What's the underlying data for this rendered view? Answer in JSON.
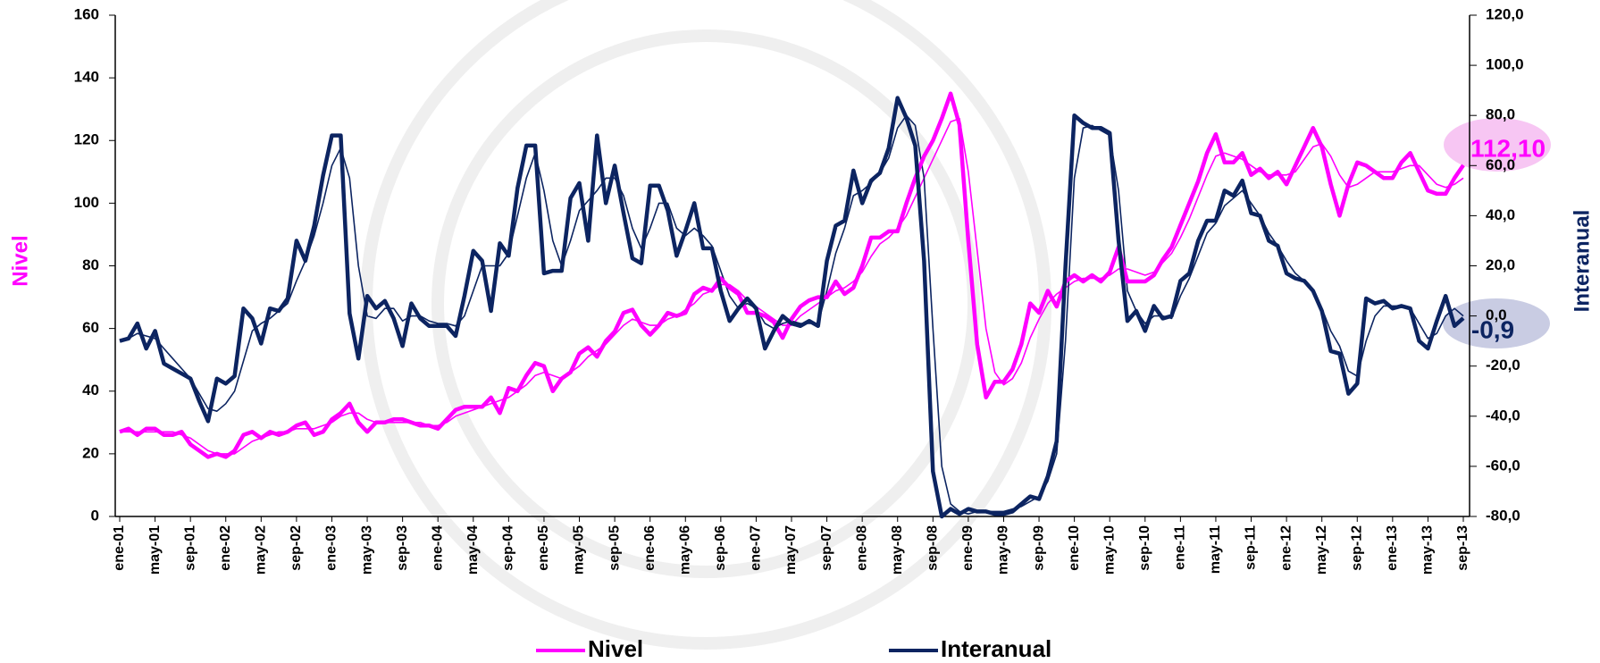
{
  "chart_data": {
    "type": "line",
    "y_label": "Nivel",
    "y2_label": "Interanual",
    "categories": [
      "ene-01",
      null,
      null,
      null,
      "may-01",
      null,
      null,
      null,
      "sep-01",
      null,
      null,
      null,
      "ene-02",
      null,
      null,
      null,
      "may-02",
      null,
      null,
      null,
      "sep-02",
      null,
      null,
      null,
      "ene-03",
      null,
      null,
      null,
      "may-03",
      null,
      null,
      null,
      "sep-03",
      null,
      null,
      null,
      "ene-04",
      null,
      null,
      null,
      "may-04",
      null,
      null,
      null,
      "sep-04",
      null,
      null,
      null,
      "ene-05",
      null,
      null,
      null,
      "may-05",
      null,
      null,
      null,
      "sep-05",
      null,
      null,
      null,
      "ene-06",
      null,
      null,
      null,
      "may-06",
      null,
      null,
      null,
      "sep-06",
      null,
      null,
      null,
      "ene-07",
      null,
      null,
      null,
      "may-07",
      null,
      null,
      null,
      "sep-07",
      null,
      null,
      null,
      "ene-08",
      null,
      null,
      null,
      "may-08",
      null,
      null,
      null,
      "sep-08",
      null,
      null,
      null,
      "ene-09",
      null,
      null,
      null,
      "may-09",
      null,
      null,
      null,
      "sep-09",
      null,
      null,
      null,
      "ene-10",
      null,
      null,
      null,
      "may-10",
      null,
      null,
      null,
      "sep-10",
      null,
      null,
      null,
      "ene-11",
      null,
      null,
      null,
      "may-11",
      null,
      null,
      null,
      "sep-11",
      null,
      null,
      null,
      "ene-12",
      null,
      null,
      null,
      "may-12",
      null,
      null,
      null,
      "sep-12",
      null,
      null,
      null,
      "ene-13",
      null,
      null,
      null,
      "may-13",
      null,
      null,
      null,
      "sep-13"
    ],
    "series": [
      {
        "color": "#ff00ff",
        "values": [
          27,
          27,
          27,
          27,
          27,
          27,
          27,
          26,
          25,
          23,
          21,
          20,
          20,
          20,
          22,
          24,
          25,
          26,
          27,
          27,
          28,
          28,
          28,
          29,
          30,
          32,
          33,
          33,
          31,
          30,
          30,
          30,
          30,
          30,
          30,
          29,
          29,
          30,
          32,
          33,
          34,
          35,
          36,
          37,
          38,
          40,
          42,
          45,
          46,
          45,
          44,
          46,
          48,
          51,
          53,
          55,
          58,
          61,
          63,
          62,
          61,
          61,
          63,
          64,
          66,
          68,
          71,
          72,
          74,
          74,
          72,
          69,
          67,
          65,
          63,
          61,
          61,
          64,
          66,
          68,
          70,
          72,
          73,
          75,
          78,
          83,
          87,
          89,
          92,
          96,
          102,
          108,
          114,
          120,
          126,
          127,
          110,
          85,
          60,
          46,
          42,
          44,
          49,
          57,
          63,
          68,
          71,
          73,
          75,
          76,
          76,
          76,
          77,
          79,
          79,
          78,
          77,
          78,
          81,
          84,
          89,
          95,
          102,
          109,
          115,
          116,
          115,
          114,
          112,
          110,
          109,
          109,
          109,
          110,
          114,
          118,
          119,
          115,
          109,
          105,
          106,
          108,
          110,
          110,
          110,
          111,
          112,
          112,
          109,
          106,
          105,
          106,
          108
        ]
      },
      {
        "color": "#0c2461",
        "axis": "y2",
        "values": [
          -10,
          -9,
          -7,
          -8,
          -9,
          -13,
          -17,
          -21,
          -25,
          -31,
          -37,
          -38,
          -35,
          -30,
          -18,
          -6,
          -3,
          -1,
          2,
          5,
          14,
          22,
          32,
          45,
          60,
          67,
          55,
          20,
          0,
          -1,
          3,
          3,
          -2,
          0,
          0,
          -2,
          -3,
          -3,
          -4,
          0,
          10,
          20,
          20,
          20,
          25,
          40,
          55,
          65,
          50,
          30,
          20,
          30,
          42,
          46,
          50,
          55,
          55,
          48,
          35,
          27,
          35,
          45,
          45,
          35,
          32,
          35,
          32,
          28,
          18,
          8,
          3,
          5,
          3,
          -3,
          -5,
          -3,
          -2,
          -3,
          -3,
          -3,
          10,
          25,
          35,
          48,
          50,
          53,
          57,
          63,
          75,
          80,
          76,
          55,
          -5,
          -60,
          -75,
          -78,
          -79,
          -78,
          -78,
          -78,
          -78,
          -77,
          -76,
          -74,
          -72,
          -66,
          -55,
          -10,
          55,
          75,
          76,
          74,
          72,
          50,
          10,
          2,
          -3,
          0,
          0,
          -1,
          8,
          15,
          24,
          33,
          37,
          44,
          47,
          50,
          45,
          40,
          33,
          28,
          22,
          17,
          14,
          10,
          3,
          -6,
          -12,
          -22,
          -24,
          -10,
          0,
          4,
          4,
          4,
          3,
          -3,
          -9,
          -7,
          0,
          3,
          0
        ]
      },
      {
        "name": "Nivel",
        "color": "#ff00ff",
        "values": [
          27,
          28,
          26,
          28,
          28,
          26,
          26,
          27,
          23,
          21,
          19,
          20,
          19,
          21,
          26,
          27,
          25,
          27,
          26,
          27,
          29,
          30,
          26,
          27,
          31,
          33,
          36,
          30,
          27,
          30,
          30,
          31,
          31,
          30,
          29,
          29,
          28,
          31,
          34,
          35,
          35,
          35,
          38,
          33,
          41,
          40,
          45,
          49,
          48,
          40,
          44,
          46,
          52,
          54,
          51,
          56,
          59,
          65,
          66,
          61,
          58,
          61,
          65,
          64,
          65,
          71,
          73,
          72,
          76,
          73,
          71,
          65,
          65,
          64,
          62,
          57,
          63,
          67,
          69,
          70,
          70,
          75,
          71,
          73,
          80,
          89,
          89,
          91,
          91,
          100,
          108,
          115,
          120,
          127,
          135,
          125,
          88,
          55,
          38,
          43,
          43,
          47,
          55,
          68,
          65,
          72,
          67,
          75,
          77,
          75,
          77,
          75,
          78,
          86,
          75,
          75,
          75,
          77,
          82,
          86,
          93,
          100,
          107,
          116,
          122,
          113,
          113,
          116,
          109,
          111,
          108,
          110,
          106,
          112,
          118,
          124,
          118,
          106,
          96,
          106,
          113,
          112,
          110,
          108,
          108,
          113,
          116,
          110,
          104,
          103,
          103,
          108,
          112.1
        ]
      },
      {
        "name": "Interanual",
        "color": "#0c2461",
        "axis": "y2",
        "values": [
          -10,
          -9,
          -3,
          -13,
          -6,
          -19,
          -21,
          -23,
          -25,
          -34,
          -42,
          -25,
          -27,
          -24,
          3,
          -1,
          -11,
          3,
          2,
          7,
          30,
          22,
          36,
          56,
          72,
          72,
          1,
          -17,
          8,
          3,
          6,
          -1,
          -12,
          5,
          -1,
          -4,
          -4,
          -4,
          -8,
          8,
          26,
          22,
          2,
          29,
          24,
          51,
          68,
          68,
          17,
          18,
          18,
          47,
          53,
          30,
          72,
          45,
          60,
          41,
          23,
          21,
          52,
          52,
          42,
          24,
          34,
          45,
          27,
          27,
          10,
          -2,
          3,
          7,
          3,
          -13,
          -6,
          0,
          -3,
          -4,
          -2,
          -4,
          22,
          36,
          38,
          58,
          45,
          54,
          57,
          67,
          87,
          79,
          68,
          22,
          -62,
          -80,
          -77,
          -79,
          -77,
          -78,
          -78,
          -79,
          -79,
          -78,
          -75,
          -72,
          -73,
          -64,
          -50,
          20,
          80,
          77,
          75,
          75,
          73,
          30,
          -2,
          2,
          -6,
          4,
          -1,
          0,
          14,
          17,
          30,
          38,
          38,
          50,
          48,
          54,
          41,
          40,
          30,
          28,
          17,
          15,
          14,
          10,
          2,
          -14,
          -15,
          -31,
          -27,
          7,
          5,
          6,
          3,
          4,
          3,
          -10,
          -13,
          -2,
          8,
          -4,
          -0.9
        ]
      }
    ],
    "annotations": [
      "112,10",
      "-0,9"
    ],
    "ylim": [
      0,
      160
    ],
    "yticks": [
      0,
      20,
      40,
      60,
      80,
      100,
      120,
      140,
      160
    ],
    "y2lim": [
      -80,
      120
    ],
    "y2ticks": [
      {
        "value": -80,
        "label": "-80,0"
      },
      {
        "value": -60,
        "label": "-60,0"
      },
      {
        "value": -40,
        "label": "-40,0"
      },
      {
        "value": -20,
        "label": "-20,0"
      },
      {
        "value": 0,
        "label": "0,0"
      },
      {
        "value": 20,
        "label": "20,0"
      },
      {
        "value": 40,
        "label": "40,0"
      },
      {
        "value": 60,
        "label": "60,0"
      },
      {
        "value": 80,
        "label": "80,0"
      },
      {
        "value": 100,
        "label": "100,0"
      },
      {
        "value": 120,
        "label": "120,0"
      }
    ],
    "grid": false,
    "legend": "bottom"
  }
}
